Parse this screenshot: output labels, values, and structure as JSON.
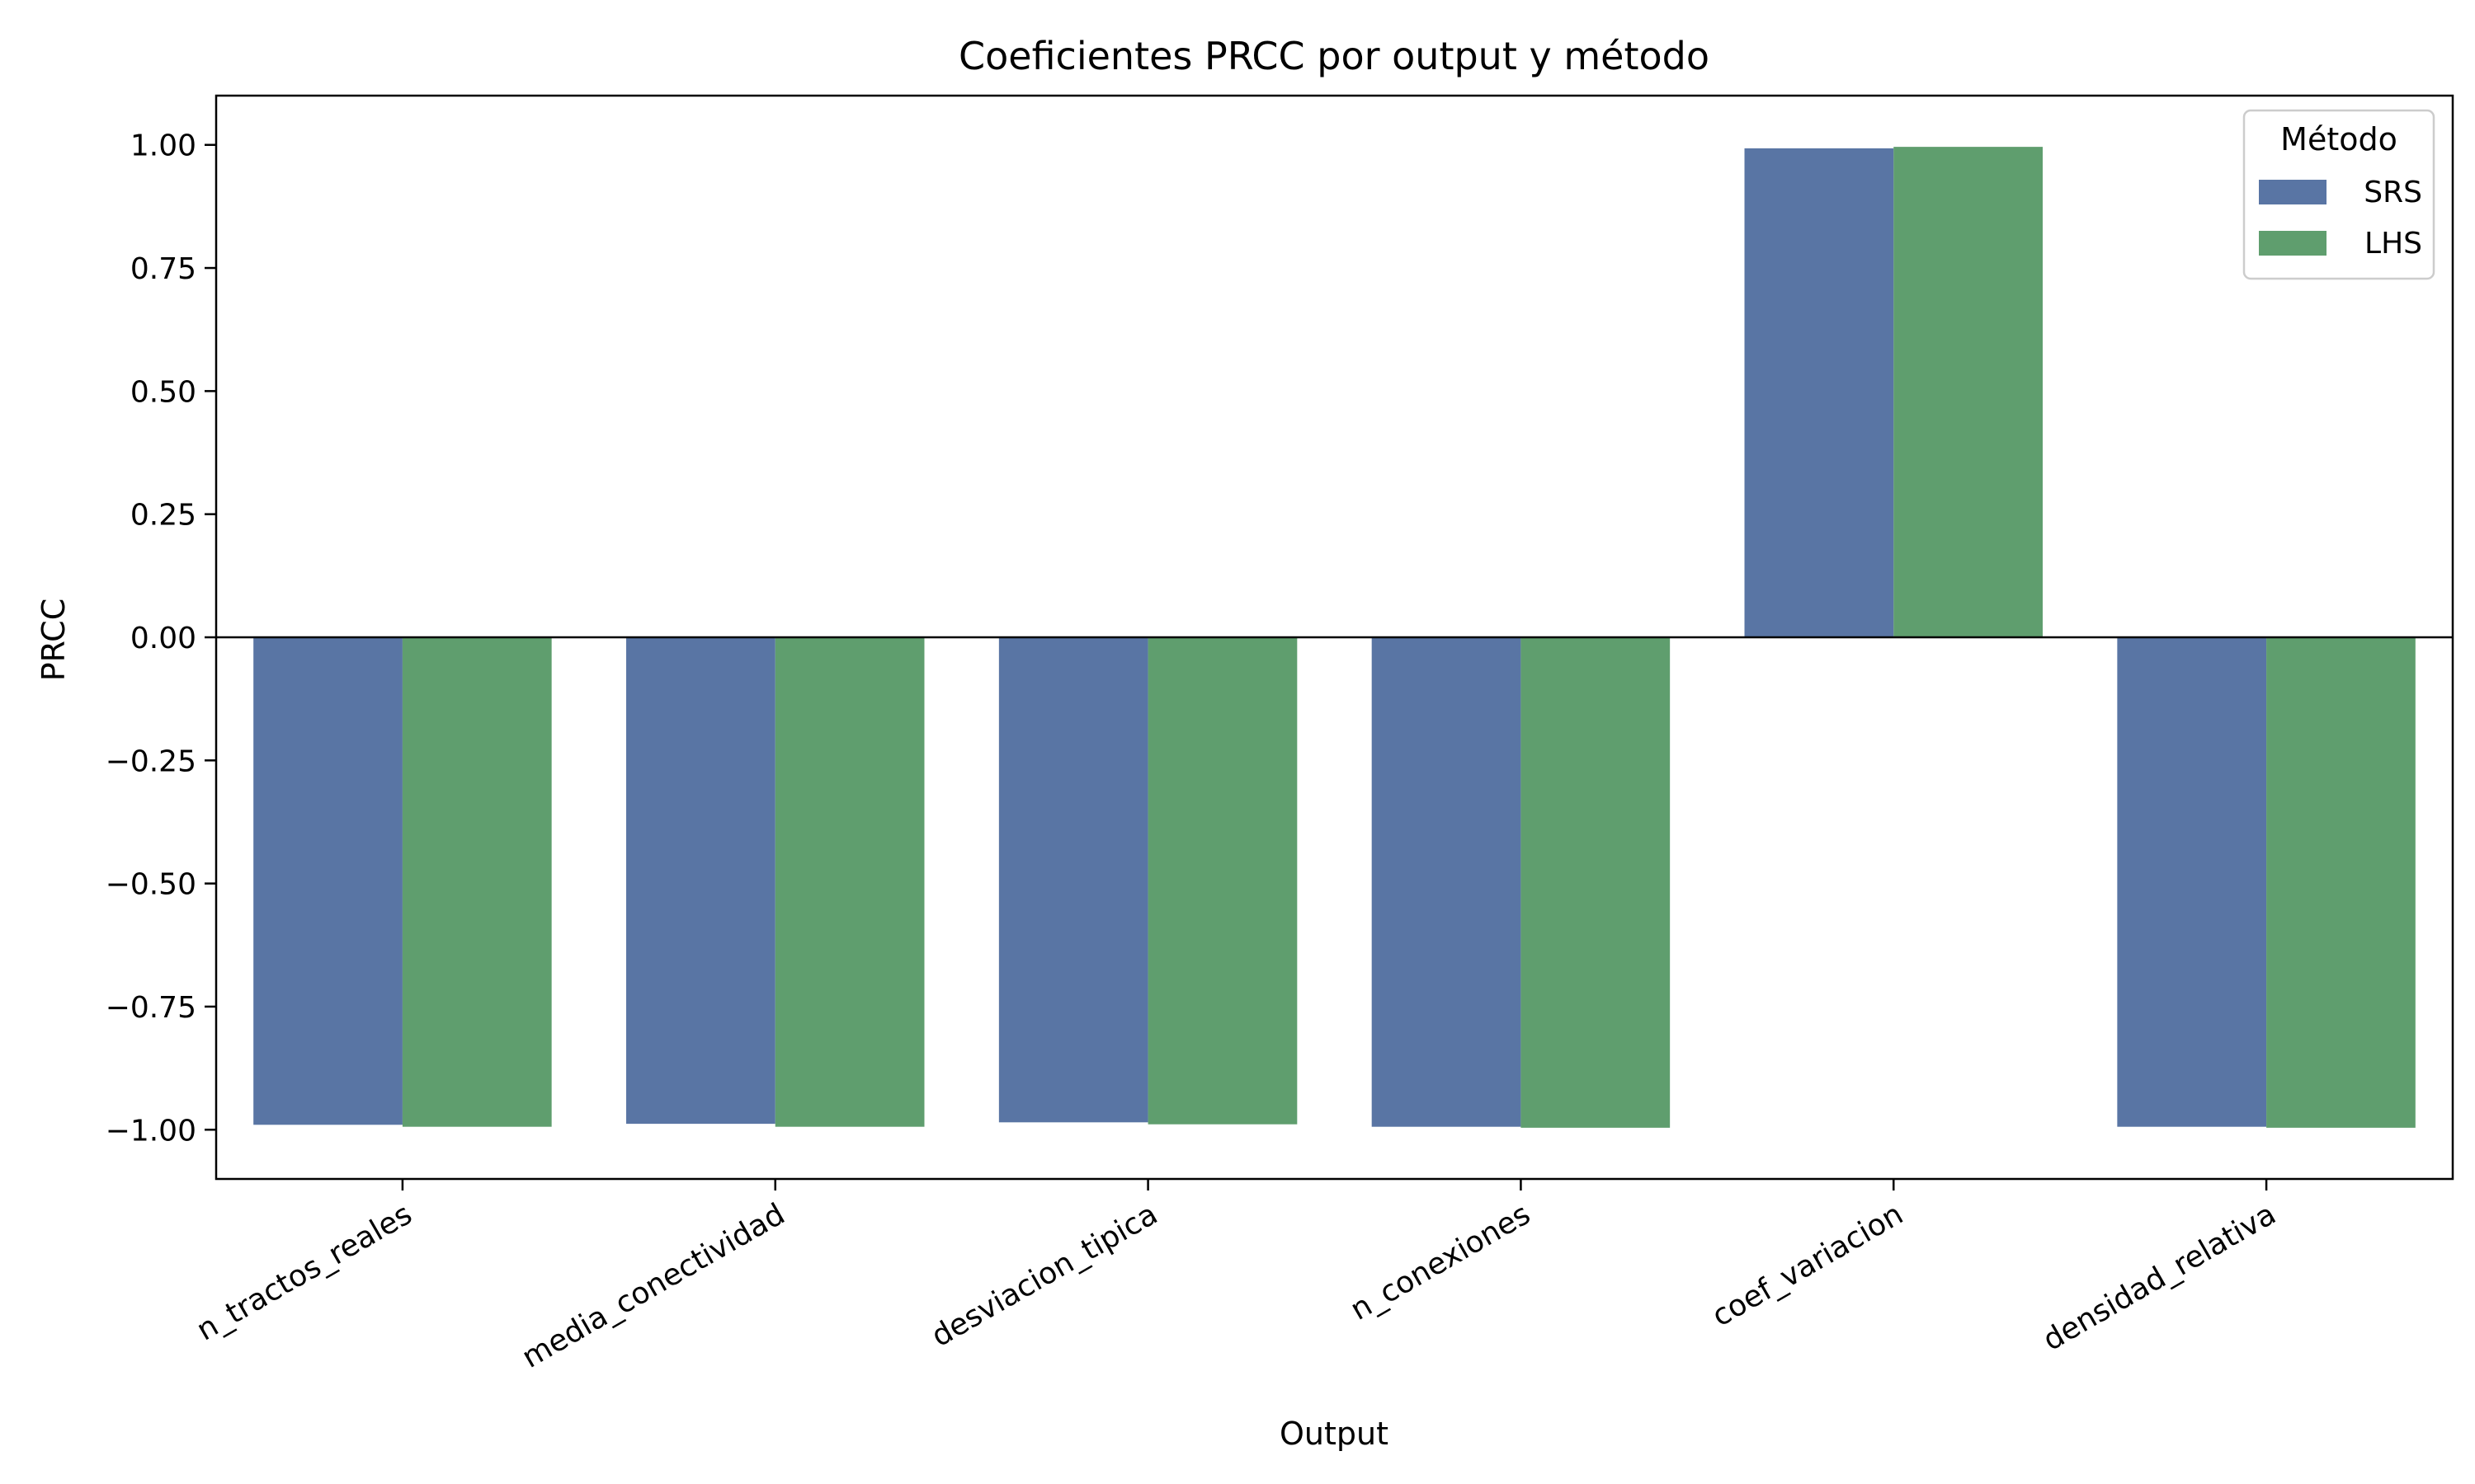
{
  "chart_data": {
    "type": "bar",
    "title": "Coeficientes PRCC por output y método",
    "xlabel": "Output",
    "ylabel": "PRCC",
    "categories": [
      "n_tractos_reales",
      "media_conectividad",
      "desviacion_tipica",
      "n_conexiones",
      "coef_variacion",
      "densidad_relativa"
    ],
    "series": [
      {
        "name": "SRS",
        "color": "#5975a4",
        "values": [
          -0.99,
          -0.988,
          -0.985,
          -0.994,
          0.993,
          -0.994
        ]
      },
      {
        "name": "LHS",
        "color": "#5f9e6e",
        "values": [
          -0.994,
          -0.994,
          -0.989,
          -0.996,
          0.996,
          -0.996
        ]
      }
    ],
    "ylim": [
      -1.1,
      1.1
    ],
    "yticks": [
      -1.0,
      -0.75,
      -0.5,
      -0.25,
      0.0,
      0.25,
      0.5,
      0.75,
      1.0
    ],
    "ytick_labels": [
      "−1.00",
      "−0.75",
      "−0.50",
      "−0.25",
      "0.00",
      "0.25",
      "0.50",
      "0.75",
      "1.00"
    ],
    "zero_line": true,
    "grid": false,
    "legend": {
      "title": "Método",
      "placement": "top-right"
    }
  }
}
